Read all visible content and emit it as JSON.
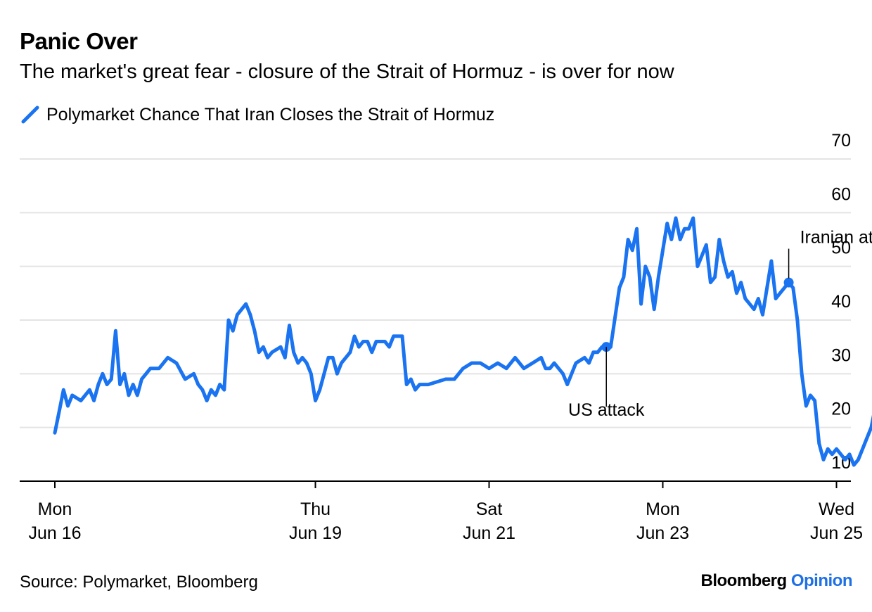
{
  "title": "Panic Over",
  "subtitle": "The market's great fear - closure of the Strait of Hormuz - is over for now",
  "source": "Source: Polymarket, Bloomberg",
  "brand": {
    "name": "Bloomberg",
    "suffix": "Opinion"
  },
  "colors": {
    "series": "#1a73f0",
    "grid": "#e4e4e4",
    "axis": "#000000",
    "brand_accent": "#1f6fe5"
  },
  "chart_data": {
    "type": "line",
    "series": [
      {
        "name": "Polymarket Chance That Iran Closes the Strait of Hormuz",
        "points": [
          [
            0.0,
            19
          ],
          [
            0.05,
            23
          ],
          [
            0.1,
            27
          ],
          [
            0.15,
            24
          ],
          [
            0.2,
            26
          ],
          [
            0.3,
            25
          ],
          [
            0.4,
            27
          ],
          [
            0.45,
            25
          ],
          [
            0.5,
            28
          ],
          [
            0.55,
            30
          ],
          [
            0.6,
            28
          ],
          [
            0.65,
            29
          ],
          [
            0.7,
            38
          ],
          [
            0.75,
            28
          ],
          [
            0.8,
            30
          ],
          [
            0.85,
            26
          ],
          [
            0.9,
            28
          ],
          [
            0.95,
            26
          ],
          [
            1.0,
            29
          ],
          [
            1.1,
            31
          ],
          [
            1.2,
            31
          ],
          [
            1.3,
            33
          ],
          [
            1.4,
            32
          ],
          [
            1.5,
            29
          ],
          [
            1.6,
            30
          ],
          [
            1.65,
            28
          ],
          [
            1.7,
            27
          ],
          [
            1.75,
            25
          ],
          [
            1.8,
            27
          ],
          [
            1.85,
            26
          ],
          [
            1.9,
            28
          ],
          [
            1.95,
            27
          ],
          [
            2.0,
            40
          ],
          [
            2.05,
            38
          ],
          [
            2.1,
            41
          ],
          [
            2.2,
            43
          ],
          [
            2.25,
            41
          ],
          [
            2.3,
            38
          ],
          [
            2.35,
            34
          ],
          [
            2.4,
            35
          ],
          [
            2.45,
            33
          ],
          [
            2.5,
            34
          ],
          [
            2.6,
            35
          ],
          [
            2.65,
            33
          ],
          [
            2.7,
            39
          ],
          [
            2.75,
            34
          ],
          [
            2.8,
            32
          ],
          [
            2.85,
            33
          ],
          [
            2.9,
            32
          ],
          [
            2.95,
            30
          ],
          [
            3.0,
            25
          ],
          [
            3.05,
            27
          ],
          [
            3.1,
            30
          ],
          [
            3.15,
            33
          ],
          [
            3.2,
            33
          ],
          [
            3.25,
            30
          ],
          [
            3.3,
            32
          ],
          [
            3.4,
            34
          ],
          [
            3.45,
            37
          ],
          [
            3.5,
            35
          ],
          [
            3.55,
            36
          ],
          [
            3.6,
            36
          ],
          [
            3.65,
            34
          ],
          [
            3.7,
            36
          ],
          [
            3.8,
            36
          ],
          [
            3.85,
            35
          ],
          [
            3.9,
            37
          ],
          [
            3.95,
            37
          ],
          [
            4.0,
            37
          ],
          [
            4.05,
            28
          ],
          [
            4.1,
            29
          ],
          [
            4.15,
            27
          ],
          [
            4.2,
            28
          ],
          [
            4.3,
            28
          ],
          [
            4.5,
            29
          ],
          [
            4.6,
            29
          ],
          [
            4.65,
            30
          ],
          [
            4.7,
            31
          ],
          [
            4.8,
            32
          ],
          [
            4.9,
            32
          ],
          [
            5.0,
            31
          ],
          [
            5.1,
            32
          ],
          [
            5.2,
            31
          ],
          [
            5.3,
            33
          ],
          [
            5.4,
            31
          ],
          [
            5.5,
            32
          ],
          [
            5.6,
            33
          ],
          [
            5.65,
            31
          ],
          [
            5.7,
            31
          ],
          [
            5.75,
            32
          ],
          [
            5.8,
            31
          ],
          [
            5.85,
            30
          ],
          [
            5.9,
            28
          ],
          [
            6.0,
            32
          ],
          [
            6.1,
            33
          ],
          [
            6.15,
            32
          ],
          [
            6.2,
            34
          ],
          [
            6.25,
            34
          ],
          [
            6.3,
            35
          ],
          [
            6.4,
            35
          ],
          [
            6.5,
            46
          ],
          [
            6.55,
            48
          ],
          [
            6.6,
            55
          ],
          [
            6.65,
            53
          ],
          [
            6.7,
            57
          ],
          [
            6.75,
            43
          ],
          [
            6.8,
            50
          ],
          [
            6.85,
            48
          ],
          [
            6.9,
            42
          ],
          [
            6.95,
            48
          ],
          [
            7.0,
            53
          ],
          [
            7.05,
            58
          ],
          [
            7.1,
            55
          ],
          [
            7.15,
            59
          ],
          [
            7.2,
            55
          ],
          [
            7.25,
            57
          ],
          [
            7.3,
            57
          ],
          [
            7.35,
            59
          ],
          [
            7.4,
            50
          ],
          [
            7.45,
            52
          ],
          [
            7.5,
            54
          ],
          [
            7.55,
            47
          ],
          [
            7.6,
            48
          ],
          [
            7.65,
            55
          ],
          [
            7.7,
            51
          ],
          [
            7.75,
            48
          ],
          [
            7.8,
            49
          ],
          [
            7.85,
            45
          ],
          [
            7.9,
            47
          ],
          [
            7.95,
            44
          ],
          [
            8.0,
            43
          ],
          [
            8.05,
            42
          ],
          [
            8.1,
            44
          ],
          [
            8.15,
            41
          ],
          [
            8.2,
            46
          ],
          [
            8.25,
            51
          ],
          [
            8.3,
            44
          ],
          [
            8.35,
            45
          ],
          [
            8.4,
            46
          ],
          [
            8.45,
            47
          ],
          [
            8.5,
            46
          ],
          [
            8.55,
            40
          ],
          [
            8.6,
            30
          ],
          [
            8.65,
            24
          ],
          [
            8.7,
            26
          ],
          [
            8.75,
            25
          ],
          [
            8.8,
            17
          ],
          [
            8.85,
            14
          ],
          [
            8.9,
            16
          ],
          [
            8.95,
            15
          ],
          [
            9.0,
            16
          ],
          [
            9.05,
            15
          ],
          [
            9.1,
            14
          ],
          [
            9.15,
            15
          ],
          [
            9.2,
            13
          ],
          [
            9.25,
            14
          ],
          [
            9.3,
            16
          ],
          [
            9.35,
            18
          ],
          [
            9.4,
            20
          ],
          [
            9.45,
            24
          ],
          [
            9.5,
            19
          ],
          [
            9.55,
            16
          ],
          [
            9.6,
            17
          ],
          [
            9.65,
            15
          ],
          [
            9.7,
            16
          ],
          [
            9.75,
            14
          ],
          [
            9.8,
            14
          ],
          [
            9.9,
            14
          ],
          [
            10.0,
            14
          ],
          [
            10.1,
            15
          ],
          [
            10.2,
            15
          ],
          [
            10.3,
            14
          ],
          [
            10.4,
            14
          ],
          [
            10.5,
            14
          ],
          [
            10.6,
            14
          ],
          [
            10.7,
            15
          ],
          [
            10.8,
            14
          ],
          [
            10.85,
            15
          ],
          [
            10.9,
            14
          ],
          [
            10.95,
            15
          ],
          [
            11.0,
            16
          ]
        ]
      }
    ],
    "x_ticks": [
      {
        "pos": 0,
        "line1": "Mon",
        "line2": "Jun 16"
      },
      {
        "pos": 3,
        "line1": "Thu",
        "line2": "Jun 19"
      },
      {
        "pos": 5,
        "line1": "Sat",
        "line2": "Jun 21"
      },
      {
        "pos": 7,
        "line1": "Mon",
        "line2": "Jun 23"
      },
      {
        "pos": 9,
        "line1": "Wed",
        "line2": "Jun 25"
      }
    ],
    "y_ticks": [
      10,
      20,
      30,
      40,
      50,
      60,
      70
    ],
    "ylim": [
      10,
      70
    ],
    "grid": true,
    "legend": "top-left",
    "annotations": [
      {
        "text": "US attack",
        "x": 6.35,
        "y": 35
      },
      {
        "text": "Iranian attack",
        "x": 8.45,
        "y": 47
      }
    ]
  }
}
